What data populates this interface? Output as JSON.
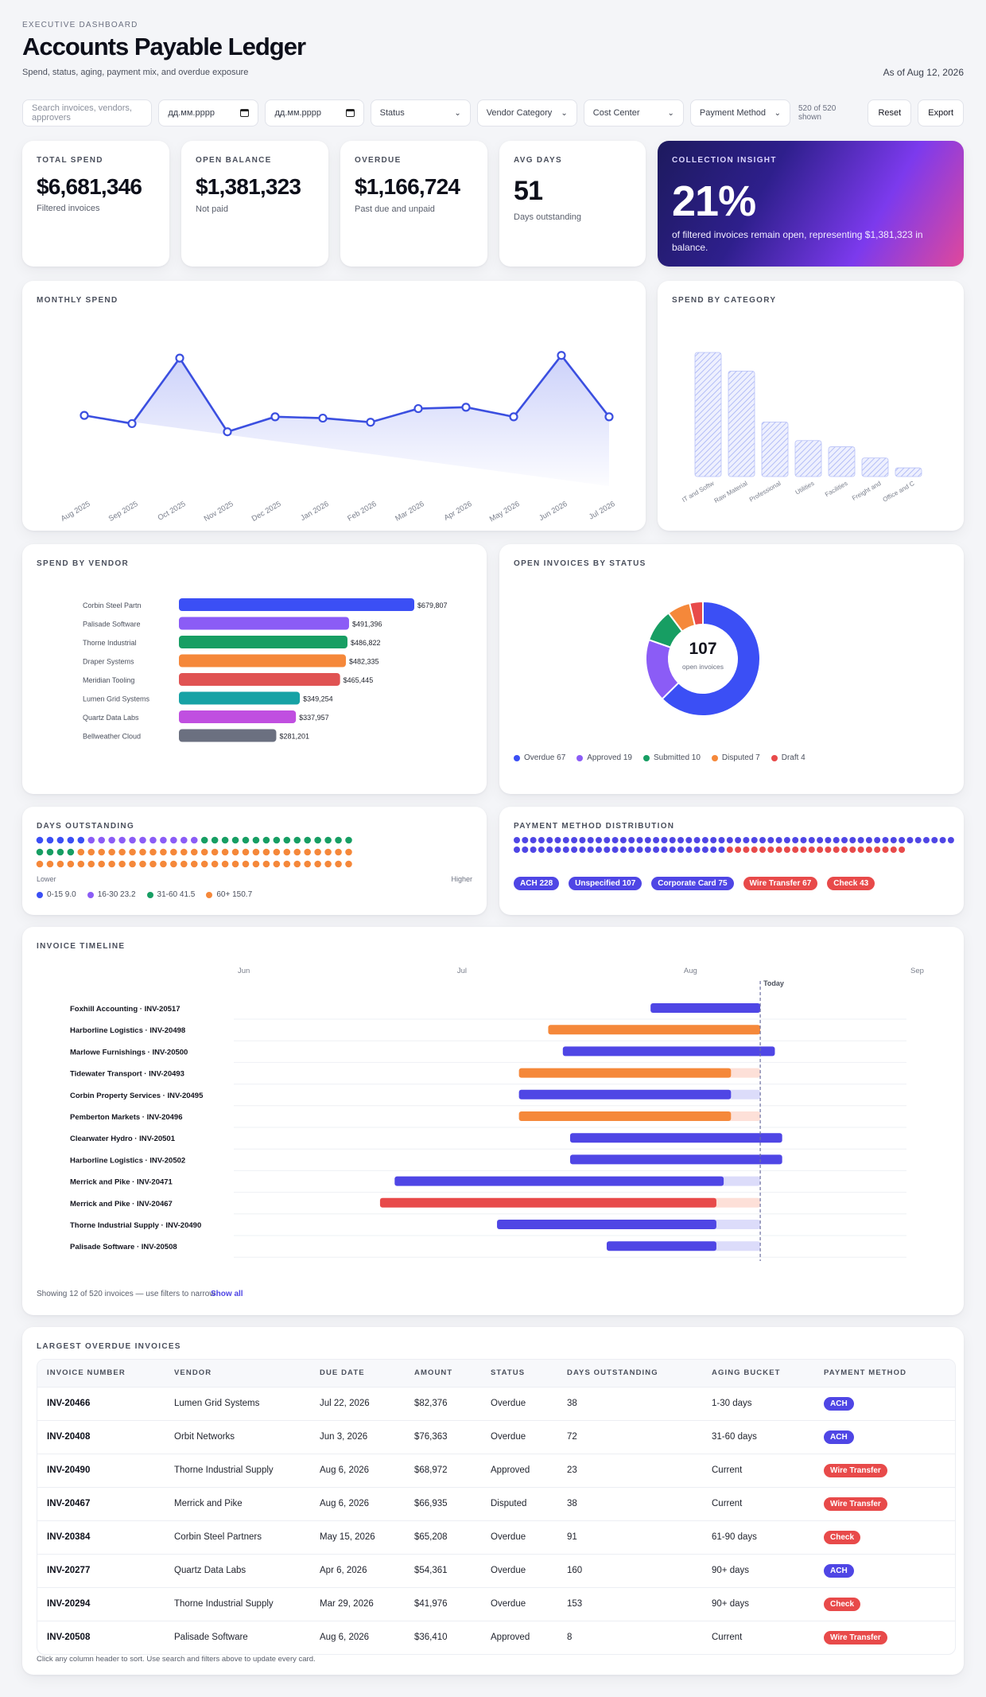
{
  "header": {
    "eyebrow": "EXECUTIVE DASHBOARD",
    "title": "Accounts Payable Ledger",
    "subtitle": "Spend, status, aging, payment mix, and overdue exposure",
    "as_of": "As of Aug 12, 2026"
  },
  "filters": {
    "search_placeholder": "Search invoices, vendors, approvers",
    "date_from": "дд.мм.рррр",
    "date_to": "дд.мм.рррр",
    "status": "Status",
    "vendor_category": "Vendor Category",
    "cost_center": "Cost Center",
    "payment_method": "Payment Method",
    "shown": "520 of 520 shown",
    "reset": "Reset",
    "export": "Export"
  },
  "kpis": [
    {
      "label": "TOTAL SPEND",
      "value": "$6,681,346",
      "caption": "Filtered invoices"
    },
    {
      "label": "OPEN BALANCE",
      "value": "$1,381,323",
      "caption": "Not paid"
    },
    {
      "label": "OVERDUE",
      "value": "$1,166,724",
      "caption": "Past due and unpaid"
    },
    {
      "label": "AVG DAYS",
      "value": "51",
      "caption": "Days outstanding"
    }
  ],
  "insight": {
    "label": "COLLECTION INSIGHT",
    "value": "21%",
    "text": "of filtered invoices remain open, representing $1,381,323 in balance."
  },
  "monthly": {
    "title": "MONTHLY SPEND"
  },
  "category": {
    "title": "SPEND BY CATEGORY"
  },
  "vendor": {
    "title": "SPEND BY VENDOR"
  },
  "status": {
    "title": "OPEN INVOICES BY STATUS",
    "center_value": "107",
    "center_label": "open invoices"
  },
  "days": {
    "title": "DAYS OUTSTANDING",
    "lower": "Lower",
    "higher": "Higher"
  },
  "payment": {
    "title": "PAYMENT METHOD DISTRIBUTION"
  },
  "timeline": {
    "title": "INVOICE TIMELINE",
    "months": [
      "Jun",
      "Jul",
      "Aug",
      "Sep"
    ],
    "today": "Today",
    "note": "Showing 12 of 520 invoices — use filters to narrow",
    "show_all": "Show all",
    "rows": [
      {
        "label": "Foxhill Accounting · INV-20517",
        "start": "2026-07-28",
        "end": "2026-08-12",
        "color": "#4f46e5",
        "tail": null
      },
      {
        "label": "Harborline Logistics · INV-20498",
        "start": "2026-07-14",
        "end": "2026-08-12",
        "color": "#f5883a",
        "tail": null
      },
      {
        "label": "Marlowe Furnishings · INV-20500",
        "start": "2026-07-16",
        "end": "2026-08-14",
        "color": "#4f46e5",
        "tail": null
      },
      {
        "label": "Tidewater Transport · INV-20493",
        "start": "2026-07-10",
        "end": "2026-08-08",
        "color": "#f5883a",
        "tail": "2026-08-12"
      },
      {
        "label": "Corbin Property Services · INV-20495",
        "start": "2026-07-10",
        "end": "2026-08-08",
        "color": "#4f46e5",
        "tail": "2026-08-12"
      },
      {
        "label": "Pemberton Markets · INV-20496",
        "start": "2026-07-10",
        "end": "2026-08-08",
        "color": "#f5883a",
        "tail": "2026-08-12"
      },
      {
        "label": "Clearwater Hydro · INV-20501",
        "start": "2026-07-17",
        "end": "2026-08-15",
        "color": "#4f46e5",
        "tail": null
      },
      {
        "label": "Harborline Logistics · INV-20502",
        "start": "2026-07-17",
        "end": "2026-08-15",
        "color": "#4f46e5",
        "tail": null
      },
      {
        "label": "Merrick and Pike · INV-20471",
        "start": "2026-06-23",
        "end": "2026-08-07",
        "color": "#4f46e5",
        "tail": "2026-08-12"
      },
      {
        "label": "Merrick and Pike · INV-20467",
        "start": "2026-06-21",
        "end": "2026-08-06",
        "color": "#e84a4a",
        "tail": "2026-08-12"
      },
      {
        "label": "Thorne Industrial Supply · INV-20490",
        "start": "2026-07-07",
        "end": "2026-08-06",
        "color": "#4f46e5",
        "tail": "2026-08-12"
      },
      {
        "label": "Palisade Software · INV-20508",
        "start": "2026-07-22",
        "end": "2026-08-06",
        "color": "#4f46e5",
        "tail": "2026-08-12"
      }
    ]
  },
  "table": {
    "title": "LARGEST OVERDUE INVOICES",
    "headers": [
      "INVOICE NUMBER",
      "VENDOR",
      "DUE DATE",
      "AMOUNT",
      "STATUS",
      "DAYS OUTSTANDING",
      "AGING BUCKET",
      "PAYMENT METHOD"
    ],
    "rows": [
      [
        "INV-20466",
        "Lumen Grid Systems",
        "Jul 22, 2026",
        "$82,376",
        "Overdue",
        "38",
        "1-30 days",
        "ACH"
      ],
      [
        "INV-20408",
        "Orbit Networks",
        "Jun 3, 2026",
        "$76,363",
        "Overdue",
        "72",
        "31-60 days",
        "ACH"
      ],
      [
        "INV-20490",
        "Thorne Industrial Supply",
        "Aug 6, 2026",
        "$68,972",
        "Approved",
        "23",
        "Current",
        "Wire Transfer"
      ],
      [
        "INV-20467",
        "Merrick and Pike",
        "Aug 6, 2026",
        "$66,935",
        "Disputed",
        "38",
        "Current",
        "Wire Transfer"
      ],
      [
        "INV-20384",
        "Corbin Steel Partners",
        "May 15, 2026",
        "$65,208",
        "Overdue",
        "91",
        "61-90 days",
        "Check"
      ],
      [
        "INV-20277",
        "Quartz Data Labs",
        "Apr 6, 2026",
        "$54,361",
        "Overdue",
        "160",
        "90+ days",
        "ACH"
      ],
      [
        "INV-20294",
        "Thorne Industrial Supply",
        "Mar 29, 2026",
        "$41,976",
        "Overdue",
        "153",
        "90+ days",
        "Check"
      ],
      [
        "INV-20508",
        "Palisade Software",
        "Aug 6, 2026",
        "$36,410",
        "Approved",
        "8",
        "Current",
        "Wire Transfer"
      ]
    ],
    "footnote": "Click any column header to sort. Use search and filters above to update every card."
  },
  "method_colors": {
    "ACH": "#4f46e5",
    "Wire Transfer": "#e84a4a",
    "Check": "#e84a4a"
  },
  "chart_data": [
    {
      "type": "area",
      "id": "monthly",
      "x": [
        "Aug 2025",
        "Sep 2025",
        "Oct 2025",
        "Nov 2025",
        "Dec 2025",
        "Jan 2026",
        "Feb 2026",
        "Mar 2026",
        "Apr 2026",
        "May 2026",
        "Jun 2026",
        "Jul 2026"
      ],
      "values": [
        58,
        52,
        100,
        46,
        57,
        56,
        53,
        63,
        64,
        57,
        102,
        57
      ],
      "color": "#3b4fe0",
      "grid": false
    },
    {
      "type": "bar",
      "id": "category",
      "categories": [
        "IT and Softw",
        "Raw Material",
        "Professional",
        "Utilities",
        "Facilities",
        "Freight and",
        "Office and C"
      ],
      "values": [
        100,
        85,
        44,
        29,
        24,
        15,
        7
      ],
      "color": "#a5b1f5",
      "grid": false
    },
    {
      "type": "bar",
      "id": "vendor",
      "orientation": "horizontal",
      "categories": [
        "Corbin Steel Partn",
        "Palisade Software",
        "Thorne Industrial",
        "Draper Systems",
        "Meridian Tooling",
        "Lumen Grid Systems",
        "Quartz Data Labs",
        "Bellweather Cloud"
      ],
      "values": [
        679807,
        491396,
        486822,
        482335,
        465445,
        349254,
        337957,
        281201
      ],
      "labels": [
        "$679,807",
        "$491,396",
        "$486,822",
        "$482,335",
        "$465,445",
        "$349,254",
        "$337,957",
        "$281,201"
      ],
      "colors": [
        "#3b4ff5",
        "#8b5cf6",
        "#179e63",
        "#f5883a",
        "#e05353",
        "#17a2a5",
        "#c04fe0",
        "#6b7080"
      ]
    },
    {
      "type": "pie",
      "id": "status",
      "categories": [
        "Overdue",
        "Approved",
        "Submitted",
        "Disputed",
        "Draft"
      ],
      "values": [
        67,
        19,
        10,
        7,
        4
      ],
      "colors": [
        "#3b4ff5",
        "#8b5cf6",
        "#179e63",
        "#f5883a",
        "#e84a4a"
      ],
      "legend_position": "bottom"
    },
    {
      "type": "scatter",
      "id": "days",
      "categories": [
        "0-15",
        "16-30",
        "31-60",
        "60+"
      ],
      "counts": [
        9,
        23,
        41,
        150.7
      ],
      "legend": [
        "0-15 9.0",
        "16-30 23.2",
        "31-60 41.5",
        "60+ 150.7"
      ],
      "dot_counts": [
        5,
        11,
        19,
        58
      ],
      "colors": [
        "#3b4ff5",
        "#8b5cf6",
        "#179e63",
        "#f5883a"
      ]
    },
    {
      "type": "scatter",
      "id": "payment",
      "categories": [
        "ACH",
        "Unspecified",
        "Corporate Card",
        "Wire Transfer",
        "Check"
      ],
      "values": [
        228,
        107,
        75,
        67,
        43
      ],
      "dot_counts": [
        44,
        21,
        15,
        13,
        9
      ],
      "pill_labels": [
        "ACH 228",
        "Unspecified 107",
        "Corporate Card 75",
        "Wire Transfer 67",
        "Check 43"
      ],
      "colors": [
        "#4f46e5",
        "#4f46e5",
        "#4f46e5",
        "#e84a4a",
        "#e84a4a"
      ]
    }
  ]
}
